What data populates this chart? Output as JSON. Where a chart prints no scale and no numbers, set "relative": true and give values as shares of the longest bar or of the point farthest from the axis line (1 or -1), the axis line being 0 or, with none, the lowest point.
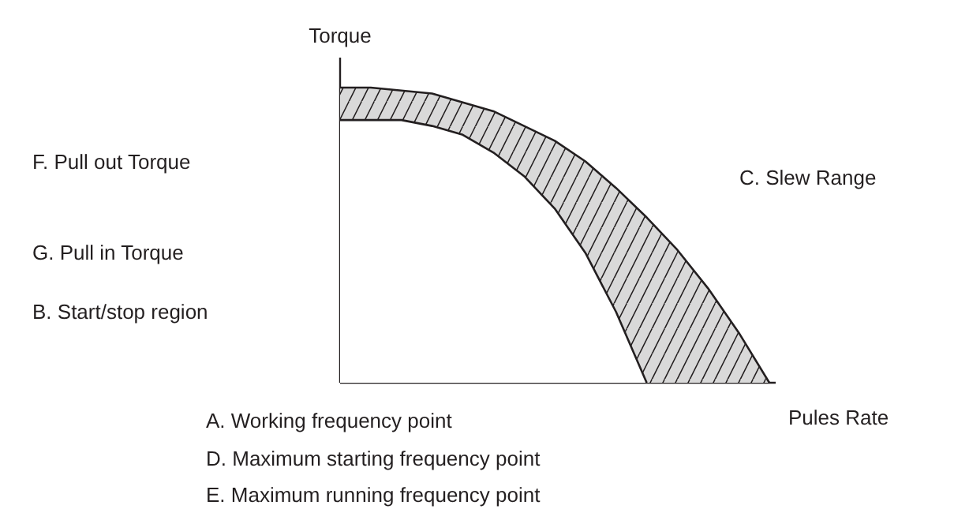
{
  "chart_data": {
    "type": "area",
    "relative": true,
    "xlabel": "Pules Rate",
    "ylabel": "Torque",
    "categories": [
      null,
      null,
      null,
      null,
      null,
      null,
      null,
      null,
      null,
      null,
      null,
      null,
      null,
      null,
      null
    ],
    "series": [
      {
        "color": "#d9d9d9",
        "values": [
          1.0,
          1.0,
          0.99,
          0.98,
          0.95,
          0.92,
          0.87,
          0.82,
          0.75,
          0.66,
          0.56,
          0.45,
          0.32,
          0.17,
          0
        ]
      },
      {
        "color": "#ffffff",
        "values": [
          0.89,
          0.89,
          0.89,
          0.87,
          0.84,
          0.78,
          0.7,
          0.59,
          0.44,
          0.24,
          0,
          null,
          null,
          null,
          null
        ]
      }
    ],
    "annotations": [
      "F. Pull out Torque",
      "C. Slew Range",
      "G. Pull in Torque",
      "B. Start/stop region",
      "A. Working frequency point",
      "D. Maximum starting frequency point",
      "E. Maximum running frequency point"
    ]
  }
}
